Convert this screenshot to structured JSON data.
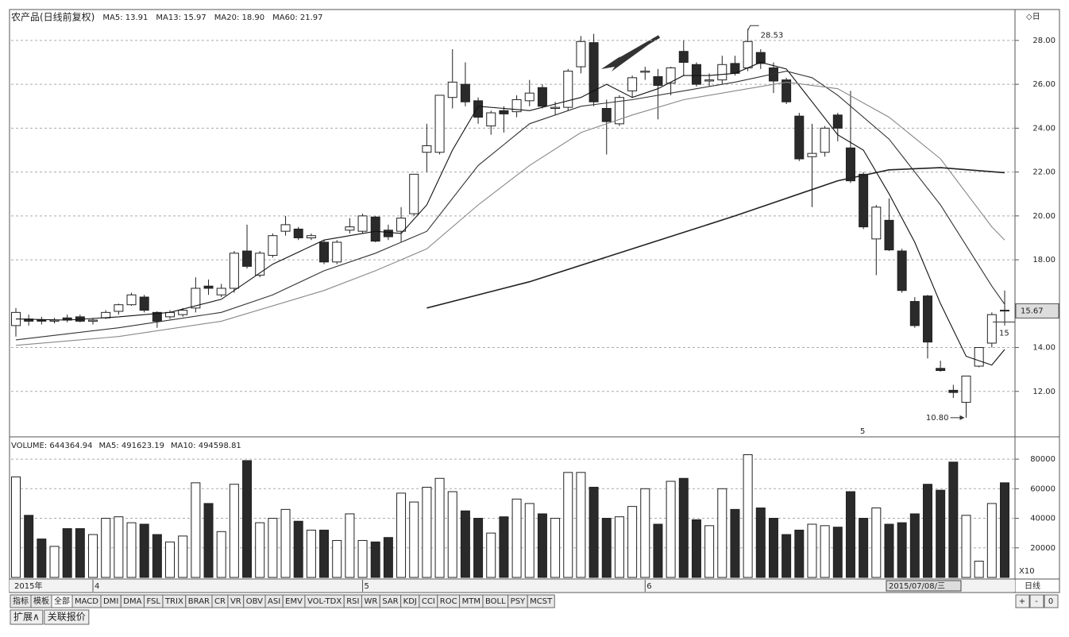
{
  "chart_data": {
    "type": "candlestick",
    "title": "农产品(日线前复权)",
    "categories": [
      "2015年",
      null,
      null,
      null,
      null,
      null,
      "4",
      null,
      null,
      null,
      null,
      null,
      null,
      null,
      null,
      null,
      null,
      null,
      null,
      null,
      null,
      null,
      null,
      null,
      null,
      null,
      null,
      "5",
      null,
      null,
      null,
      null,
      null,
      null,
      null,
      null,
      null,
      null,
      null,
      null,
      null,
      null,
      null,
      null,
      null,
      null,
      null,
      null,
      null,
      "6",
      null,
      null,
      null,
      null,
      null,
      null,
      null,
      null,
      null,
      null,
      null,
      null,
      null,
      null,
      null,
      null,
      null,
      null,
      null,
      null,
      null,
      null,
      null,
      null,
      null,
      null,
      null,
      null
    ],
    "open": [
      15.0,
      15.3,
      15.25,
      15.2,
      15.35,
      15.4,
      15.2,
      15.35,
      15.65,
      15.95,
      16.3,
      15.6,
      15.4,
      15.5,
      15.8,
      16.8,
      16.4,
      16.7,
      18.4,
      17.3,
      18.2,
      19.3,
      19.4,
      19.0,
      18.8,
      17.9,
      19.35,
      19.3,
      19.95,
      19.35,
      19.3,
      20.1,
      22.9,
      22.9,
      25.4,
      26.0,
      25.25,
      24.1,
      24.8,
      24.75,
      25.25,
      25.85,
      24.9,
      24.95,
      26.8,
      27.9,
      24.9,
      24.2,
      25.7,
      26.55,
      26.35,
      26.05,
      27.5,
      26.9,
      26.15,
      26.2,
      26.95,
      26.75,
      27.45,
      26.75,
      26.2,
      24.55,
      22.7,
      22.9,
      24.6,
      23.1,
      21.9,
      18.95,
      19.8,
      18.4,
      16.1,
      16.35,
      13.05,
      12.05,
      11.5,
      13.15,
      14.2,
      15.7
    ],
    "high": [
      15.8,
      15.5,
      15.4,
      15.35,
      15.5,
      15.5,
      15.35,
      15.7,
      16.0,
      16.5,
      16.4,
      15.65,
      15.7,
      15.8,
      17.2,
      17.1,
      16.9,
      18.4,
      19.6,
      18.4,
      19.2,
      20.0,
      19.5,
      19.2,
      18.9,
      18.9,
      19.9,
      20.1,
      20.0,
      19.6,
      20.4,
      21.9,
      24.2,
      25.5,
      27.6,
      27.0,
      25.4,
      24.8,
      25.0,
      25.5,
      26.2,
      26.0,
      25.2,
      26.7,
      28.2,
      28.3,
      25.3,
      25.5,
      26.4,
      26.8,
      26.7,
      26.8,
      28.0,
      27.0,
      26.5,
      27.3,
      27.3,
      28.53,
      27.6,
      27.0,
      26.3,
      24.7,
      24.2,
      24.1,
      24.7,
      25.7,
      22.0,
      20.5,
      20.8,
      18.5,
      16.3,
      16.4,
      13.4,
      12.3,
      12.7,
      14.0,
      15.6,
      16.6
    ],
    "low": [
      14.5,
      15.0,
      15.05,
      15.1,
      15.15,
      15.15,
      15.05,
      15.3,
      15.5,
      15.9,
      15.6,
      14.9,
      15.3,
      15.4,
      15.6,
      16.4,
      16.3,
      16.5,
      17.6,
      17.2,
      18.1,
      19.1,
      18.9,
      18.9,
      17.8,
      17.8,
      19.2,
      19.2,
      18.8,
      18.9,
      18.8,
      20.0,
      22.0,
      22.8,
      24.9,
      25.0,
      24.2,
      23.7,
      23.8,
      24.5,
      25.0,
      24.9,
      24.6,
      24.8,
      26.5,
      25.0,
      22.8,
      24.1,
      25.4,
      26.2,
      24.4,
      25.5,
      26.4,
      25.9,
      25.9,
      26.0,
      26.4,
      26.6,
      26.7,
      25.6,
      25.1,
      22.5,
      20.4,
      22.7,
      23.4,
      21.5,
      19.4,
      17.3,
      18.4,
      16.5,
      14.9,
      13.5,
      12.9,
      11.7,
      10.8,
      13.1,
      14.0,
      15.0
    ],
    "close": [
      15.6,
      15.2,
      15.2,
      15.25,
      15.25,
      15.2,
      15.25,
      15.6,
      15.95,
      16.4,
      15.7,
      15.2,
      15.6,
      15.7,
      16.7,
      16.7,
      16.7,
      18.3,
      17.7,
      18.3,
      19.1,
      19.6,
      19.0,
      19.1,
      17.9,
      18.8,
      19.5,
      20.0,
      18.85,
      19.05,
      19.9,
      21.9,
      23.2,
      25.5,
      26.1,
      25.2,
      24.5,
      24.7,
      24.65,
      25.3,
      25.6,
      25.0,
      24.95,
      26.6,
      27.95,
      25.2,
      24.3,
      25.4,
      26.3,
      26.6,
      25.95,
      26.75,
      27.0,
      26.0,
      26.2,
      26.9,
      26.5,
      27.95,
      26.95,
      26.15,
      25.2,
      22.6,
      22.85,
      24.0,
      24.0,
      21.6,
      19.5,
      20.4,
      18.45,
      16.6,
      15.0,
      14.25,
      12.95,
      11.95,
      12.7,
      14.0,
      15.5,
      15.67
    ],
    "volume": [
      68000,
      42000,
      26000,
      21000,
      33000,
      33000,
      29000,
      40000,
      41000,
      37000,
      36000,
      29000,
      24000,
      28000,
      64000,
      50000,
      31000,
      63000,
      79000,
      37000,
      40000,
      46000,
      38000,
      32000,
      32000,
      25000,
      43000,
      25000,
      24000,
      27000,
      57000,
      51000,
      61000,
      67000,
      58000,
      45000,
      40000,
      30000,
      41000,
      53000,
      50000,
      43000,
      40000,
      71000,
      71000,
      61000,
      40000,
      41000,
      48000,
      60000,
      36000,
      65000,
      67000,
      39000,
      35000,
      60000,
      46000,
      83000,
      47000,
      40000,
      29000,
      32000,
      36000,
      35000,
      34000,
      58000,
      40000,
      47000,
      36000,
      37000,
      43000,
      63000,
      59000,
      78000,
      42000,
      11000,
      50000,
      64000
    ],
    "series": [
      {
        "name": "MA5: 13.91",
        "color": "#111111",
        "x": [
          0,
          4,
          8,
          12,
          16,
          20,
          24,
          28,
          30,
          32,
          34,
          36,
          38,
          40,
          42,
          44,
          46,
          48,
          50,
          52,
          54,
          56,
          58,
          60,
          62,
          64,
          66,
          68,
          70,
          72,
          74,
          76,
          77
        ],
        "values": [
          15.3,
          15.25,
          15.4,
          15.6,
          16.2,
          17.8,
          18.9,
          19.3,
          19.2,
          20.5,
          23.0,
          25.0,
          24.9,
          24.8,
          25.1,
          25.4,
          26.0,
          25.4,
          25.8,
          26.4,
          26.4,
          26.5,
          27.0,
          26.7,
          25.2,
          23.7,
          23.0,
          21.0,
          18.8,
          16.0,
          13.6,
          13.2,
          13.91
        ]
      },
      {
        "name": "MA13: 15.97",
        "color": "#333333",
        "x": [
          0,
          8,
          16,
          20,
          24,
          28,
          32,
          36,
          40,
          44,
          48,
          52,
          56,
          60,
          62,
          64,
          68,
          72,
          76,
          77
        ],
        "values": [
          14.35,
          14.9,
          15.6,
          16.4,
          17.5,
          18.3,
          19.3,
          22.3,
          24.2,
          25.0,
          25.3,
          25.7,
          26.1,
          26.6,
          26.3,
          25.5,
          23.5,
          20.5,
          16.8,
          15.97
        ]
      },
      {
        "name": "MA20: 18.90",
        "color": "#888888",
        "x": [
          0,
          8,
          16,
          24,
          28,
          32,
          36,
          40,
          44,
          48,
          52,
          56,
          60,
          64,
          68,
          72,
          76,
          77
        ],
        "values": [
          14.1,
          14.5,
          15.2,
          16.6,
          17.5,
          18.5,
          20.5,
          22.3,
          23.8,
          24.6,
          25.3,
          25.7,
          26.1,
          25.8,
          24.5,
          22.6,
          19.5,
          18.9
        ]
      },
      {
        "name": "MA60: 21.97",
        "color": "#222222",
        "x": [
          32,
          40,
          48,
          56,
          64,
          68,
          72,
          77
        ],
        "values": [
          15.8,
          17.0,
          18.5,
          20.0,
          21.6,
          22.1,
          22.2,
          21.97
        ]
      }
    ],
    "ylim": [
      10,
      29.3
    ],
    "yticks": [
      {
        "value": 12,
        "label": "12.00"
      },
      {
        "value": 14,
        "label": "14.00"
      },
      {
        "value": 18,
        "label": "18.00"
      },
      {
        "value": 20,
        "label": "20.00"
      },
      {
        "value": 22,
        "label": "22.00"
      },
      {
        "value": 24,
        "label": "24.00"
      },
      {
        "value": 26,
        "label": "26.00"
      },
      {
        "value": 28,
        "label": "28.00"
      }
    ],
    "volume_ylim": [
      0,
      94000
    ],
    "volume_yticks": [
      20000,
      40000,
      60000,
      80000
    ],
    "volume_unit": "X10",
    "volume_header": [
      "VOLUME: 644364.94",
      "MA5: 491623.19",
      "MA10: 494598.81"
    ],
    "high_label": 28.53,
    "low_label": {
      "value": 10.8,
      "label": "10.80"
    },
    "last_price": 15.67,
    "cursor_label": "15",
    "marker_text": "5",
    "date_box": "2015/07/08/三",
    "grid": true
  },
  "toolbar": {
    "tabs": [
      "指标",
      "模板",
      "全部",
      "MACD",
      "DMI",
      "DMA",
      "FSL",
      "TRIX",
      "BRAR",
      "CR",
      "VR",
      "OBV",
      "ASI",
      "EMV",
      "VOL-TDX",
      "RSI",
      "WR",
      "SAR",
      "KDJ",
      "CCI",
      "ROC",
      "MTM",
      "BOLL",
      "PSY",
      "MCST"
    ],
    "period": "日线",
    "buttons": [
      "+",
      "-",
      "0"
    ],
    "footer": [
      "扩展∧",
      "关联报价"
    ]
  }
}
